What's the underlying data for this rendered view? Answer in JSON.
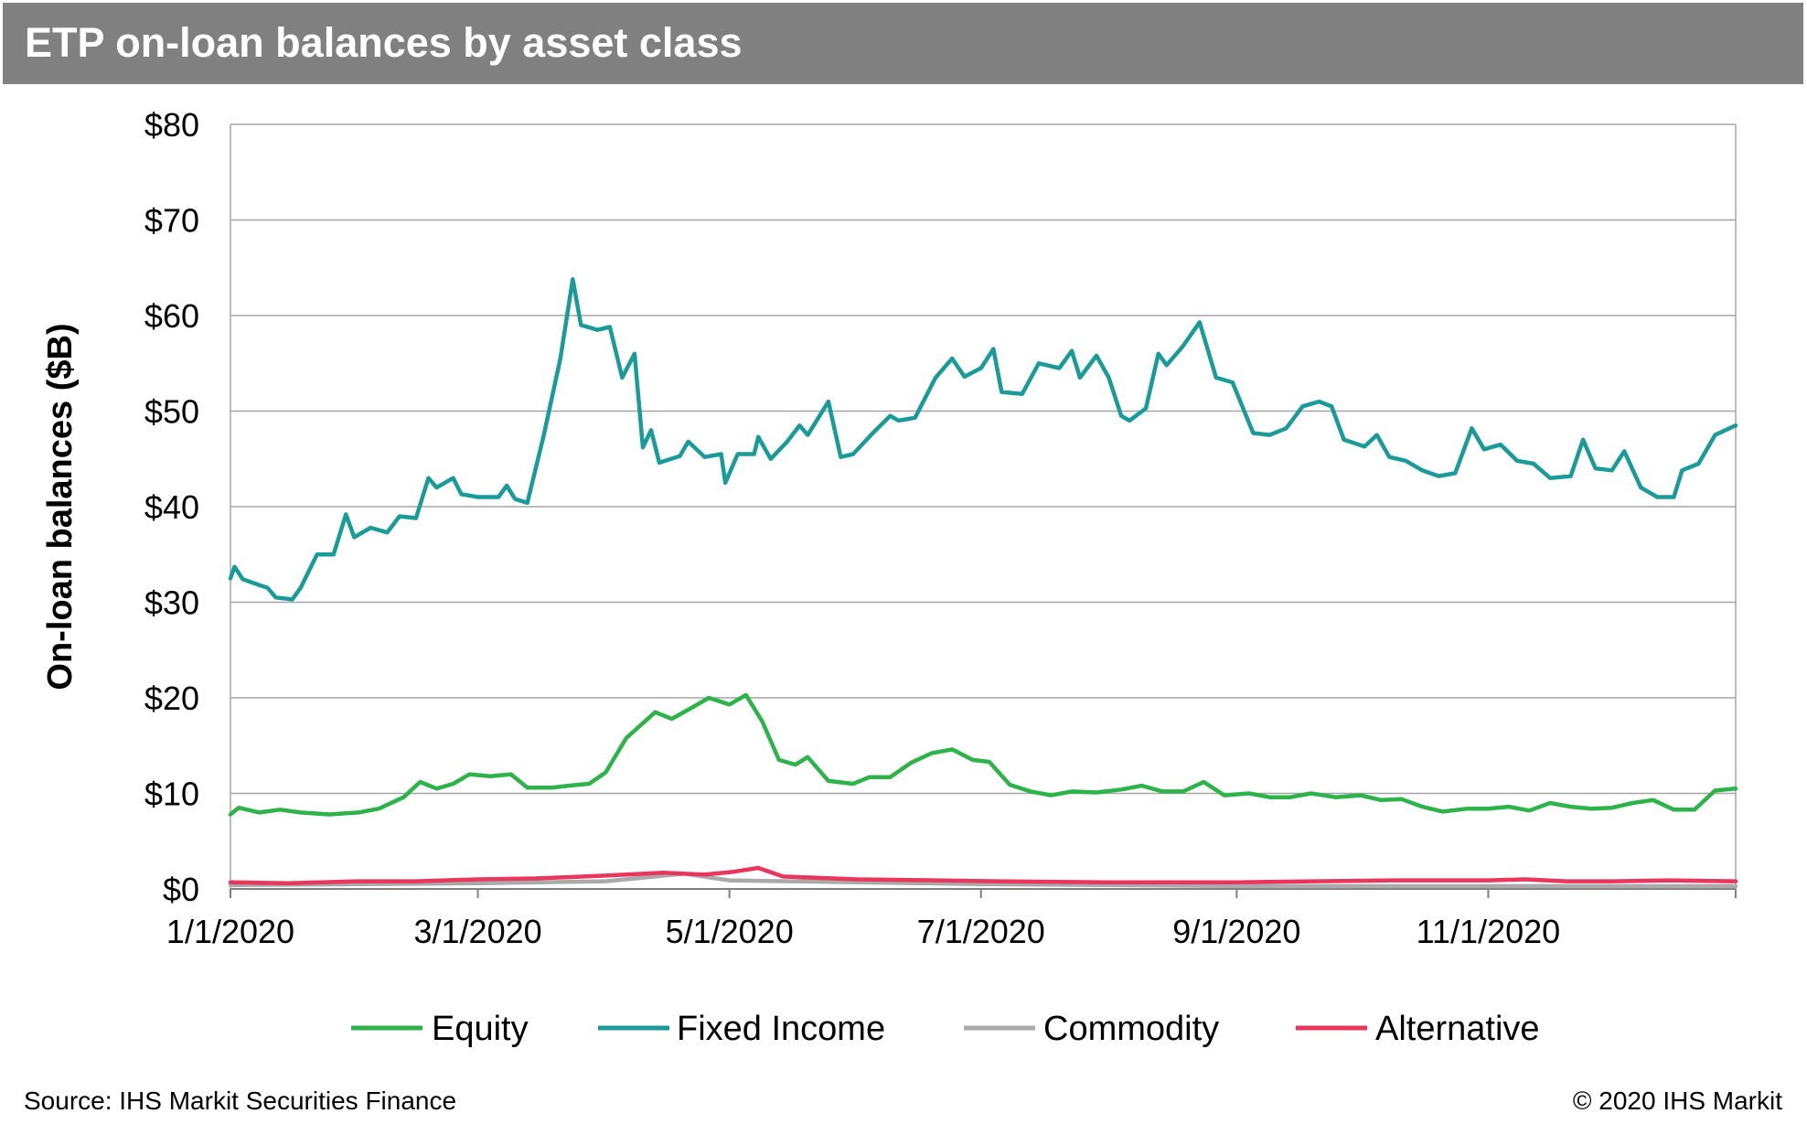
{
  "header": {
    "title": "ETP on-loan balances by asset class"
  },
  "footer": {
    "source": "Source: IHS Markit Securities Finance",
    "copyright": "© 2020 IHS Markit"
  },
  "chart_data": {
    "type": "line",
    "title": "ETP on-loan balances by asset class",
    "xlabel": "",
    "ylabel": "On-loan balances ($B)",
    "ylim": [
      0,
      80
    ],
    "yticks": [
      0,
      10,
      20,
      30,
      40,
      50,
      60,
      70,
      80
    ],
    "ytick_labels": [
      "$0",
      "$10",
      "$20",
      "$30",
      "$40",
      "$50",
      "$60",
      "$70",
      "$80"
    ],
    "xlim": [
      "2020-01-01",
      "2020-12-31"
    ],
    "xticks": [
      "2020-01-01",
      "2020-03-01",
      "2020-05-01",
      "2020-07-01",
      "2020-09-01",
      "2020-11-01"
    ],
    "xtick_labels": [
      "1/1/2020",
      "3/1/2020",
      "5/1/2020",
      "7/1/2020",
      "9/1/2020",
      "11/1/2020"
    ],
    "grid": "horizontal",
    "legend_position": "bottom",
    "series": [
      {
        "name": "Equity",
        "color": "#2eb34a",
        "points": [
          [
            "2020-01-01",
            7.8
          ],
          [
            "2020-01-03",
            8.5
          ],
          [
            "2020-01-08",
            8.0
          ],
          [
            "2020-01-13",
            8.3
          ],
          [
            "2020-01-18",
            8.0
          ],
          [
            "2020-01-25",
            7.8
          ],
          [
            "2020-02-01",
            8.0
          ],
          [
            "2020-02-06",
            8.4
          ],
          [
            "2020-02-12",
            9.6
          ],
          [
            "2020-02-16",
            11.2
          ],
          [
            "2020-02-20",
            10.5
          ],
          [
            "2020-02-24",
            11.0
          ],
          [
            "2020-02-28",
            12.0
          ],
          [
            "2020-03-04",
            11.8
          ],
          [
            "2020-03-09",
            12.0
          ],
          [
            "2020-03-13",
            10.6
          ],
          [
            "2020-03-19",
            10.6
          ],
          [
            "2020-03-23",
            10.8
          ],
          [
            "2020-03-28",
            11.0
          ],
          [
            "2020-04-01",
            12.2
          ],
          [
            "2020-04-06",
            15.8
          ],
          [
            "2020-04-13",
            18.5
          ],
          [
            "2020-04-17",
            17.8
          ],
          [
            "2020-04-22",
            19.0
          ],
          [
            "2020-04-26",
            20.0
          ],
          [
            "2020-05-01",
            19.3
          ],
          [
            "2020-05-05",
            20.3
          ],
          [
            "2020-05-09",
            17.5
          ],
          [
            "2020-05-13",
            13.5
          ],
          [
            "2020-05-17",
            13.0
          ],
          [
            "2020-05-20",
            13.8
          ],
          [
            "2020-05-25",
            11.3
          ],
          [
            "2020-05-31",
            11.0
          ],
          [
            "2020-06-04",
            11.7
          ],
          [
            "2020-06-09",
            11.7
          ],
          [
            "2020-06-14",
            13.2
          ],
          [
            "2020-06-19",
            14.2
          ],
          [
            "2020-06-24",
            14.6
          ],
          [
            "2020-06-29",
            13.5
          ],
          [
            "2020-07-03",
            13.3
          ],
          [
            "2020-07-08",
            10.9
          ],
          [
            "2020-07-13",
            10.2
          ],
          [
            "2020-07-18",
            9.8
          ],
          [
            "2020-07-23",
            10.2
          ],
          [
            "2020-07-29",
            10.1
          ],
          [
            "2020-08-04",
            10.4
          ],
          [
            "2020-08-09",
            10.8
          ],
          [
            "2020-08-14",
            10.2
          ],
          [
            "2020-08-19",
            10.2
          ],
          [
            "2020-08-24",
            11.2
          ],
          [
            "2020-08-29",
            9.8
          ],
          [
            "2020-09-04",
            10.0
          ],
          [
            "2020-09-09",
            9.6
          ],
          [
            "2020-09-14",
            9.6
          ],
          [
            "2020-09-19",
            10.0
          ],
          [
            "2020-09-25",
            9.6
          ],
          [
            "2020-10-01",
            9.8
          ],
          [
            "2020-10-06",
            9.3
          ],
          [
            "2020-10-11",
            9.4
          ],
          [
            "2020-10-16",
            8.6
          ],
          [
            "2020-10-21",
            8.1
          ],
          [
            "2020-10-27",
            8.4
          ],
          [
            "2020-11-01",
            8.4
          ],
          [
            "2020-11-06",
            8.6
          ],
          [
            "2020-11-11",
            8.2
          ],
          [
            "2020-11-16",
            9.0
          ],
          [
            "2020-11-21",
            8.6
          ],
          [
            "2020-11-26",
            8.4
          ],
          [
            "2020-12-01",
            8.5
          ],
          [
            "2020-12-06",
            9.0
          ],
          [
            "2020-12-11",
            9.3
          ],
          [
            "2020-12-16",
            8.3
          ],
          [
            "2020-12-21",
            8.3
          ],
          [
            "2020-12-26",
            10.3
          ],
          [
            "2020-12-31",
            10.5
          ]
        ]
      },
      {
        "name": "Fixed Income",
        "color": "#1b9a9a",
        "points": [
          [
            "2020-01-01",
            32.5
          ],
          [
            "2020-01-02",
            33.7
          ],
          [
            "2020-01-04",
            32.4
          ],
          [
            "2020-01-08",
            31.8
          ],
          [
            "2020-01-10",
            31.5
          ],
          [
            "2020-01-12",
            30.5
          ],
          [
            "2020-01-16",
            30.3
          ],
          [
            "2020-01-18",
            31.5
          ],
          [
            "2020-01-22",
            35.0
          ],
          [
            "2020-01-26",
            35.0
          ],
          [
            "2020-01-29",
            39.2
          ],
          [
            "2020-01-31",
            36.8
          ],
          [
            "2020-02-04",
            37.8
          ],
          [
            "2020-02-08",
            37.3
          ],
          [
            "2020-02-11",
            39.0
          ],
          [
            "2020-02-15",
            38.8
          ],
          [
            "2020-02-18",
            43.0
          ],
          [
            "2020-02-20",
            42.0
          ],
          [
            "2020-02-24",
            43.0
          ],
          [
            "2020-02-26",
            41.3
          ],
          [
            "2020-03-01",
            41.0
          ],
          [
            "2020-03-06",
            41.0
          ],
          [
            "2020-03-08",
            42.2
          ],
          [
            "2020-03-10",
            40.8
          ],
          [
            "2020-03-13",
            40.4
          ],
          [
            "2020-03-17",
            47.5
          ],
          [
            "2020-03-21",
            55.5
          ],
          [
            "2020-03-24",
            63.8
          ],
          [
            "2020-03-26",
            59.0
          ],
          [
            "2020-03-30",
            58.5
          ],
          [
            "2020-04-02",
            58.8
          ],
          [
            "2020-04-05",
            53.5
          ],
          [
            "2020-04-08",
            56.0
          ],
          [
            "2020-04-10",
            46.2
          ],
          [
            "2020-04-12",
            48.0
          ],
          [
            "2020-04-14",
            44.6
          ],
          [
            "2020-04-19",
            45.3
          ],
          [
            "2020-04-21",
            46.8
          ],
          [
            "2020-04-25",
            45.2
          ],
          [
            "2020-04-29",
            45.5
          ],
          [
            "2020-04-30",
            42.5
          ],
          [
            "2020-05-03",
            45.5
          ],
          [
            "2020-05-07",
            45.5
          ],
          [
            "2020-05-08",
            47.3
          ],
          [
            "2020-05-11",
            45.0
          ],
          [
            "2020-05-15",
            46.8
          ],
          [
            "2020-05-18",
            48.5
          ],
          [
            "2020-05-20",
            47.5
          ],
          [
            "2020-05-25",
            51.0
          ],
          [
            "2020-05-28",
            45.2
          ],
          [
            "2020-05-31",
            45.5
          ],
          [
            "2020-06-05",
            47.8
          ],
          [
            "2020-06-09",
            49.5
          ],
          [
            "2020-06-11",
            49.0
          ],
          [
            "2020-06-15",
            49.3
          ],
          [
            "2020-06-20",
            53.5
          ],
          [
            "2020-06-24",
            55.5
          ],
          [
            "2020-06-27",
            53.6
          ],
          [
            "2020-07-01",
            54.5
          ],
          [
            "2020-07-04",
            56.5
          ],
          [
            "2020-07-06",
            52.0
          ],
          [
            "2020-07-11",
            51.8
          ],
          [
            "2020-07-15",
            55.0
          ],
          [
            "2020-07-20",
            54.5
          ],
          [
            "2020-07-23",
            56.3
          ],
          [
            "2020-07-25",
            53.5
          ],
          [
            "2020-07-29",
            55.8
          ],
          [
            "2020-08-01",
            53.5
          ],
          [
            "2020-08-04",
            49.5
          ],
          [
            "2020-08-06",
            49.0
          ],
          [
            "2020-08-10",
            50.3
          ],
          [
            "2020-08-13",
            56.0
          ],
          [
            "2020-08-15",
            54.8
          ],
          [
            "2020-08-19",
            56.8
          ],
          [
            "2020-08-23",
            59.3
          ],
          [
            "2020-08-27",
            53.5
          ],
          [
            "2020-08-31",
            53.0
          ],
          [
            "2020-09-05",
            47.7
          ],
          [
            "2020-09-09",
            47.5
          ],
          [
            "2020-09-13",
            48.2
          ],
          [
            "2020-09-17",
            50.5
          ],
          [
            "2020-09-21",
            51.0
          ],
          [
            "2020-09-24",
            50.5
          ],
          [
            "2020-09-27",
            47.0
          ],
          [
            "2020-10-02",
            46.3
          ],
          [
            "2020-10-05",
            47.5
          ],
          [
            "2020-10-08",
            45.2
          ],
          [
            "2020-10-12",
            44.8
          ],
          [
            "2020-10-16",
            43.8
          ],
          [
            "2020-10-20",
            43.2
          ],
          [
            "2020-10-24",
            43.5
          ],
          [
            "2020-10-28",
            48.2
          ],
          [
            "2020-10-31",
            46.0
          ],
          [
            "2020-11-04",
            46.5
          ],
          [
            "2020-11-08",
            44.8
          ],
          [
            "2020-11-12",
            44.5
          ],
          [
            "2020-11-16",
            43.0
          ],
          [
            "2020-11-21",
            43.2
          ],
          [
            "2020-11-24",
            47.0
          ],
          [
            "2020-11-27",
            44.0
          ],
          [
            "2020-12-01",
            43.8
          ],
          [
            "2020-12-04",
            45.8
          ],
          [
            "2020-12-08",
            42.0
          ],
          [
            "2020-12-12",
            41.0
          ],
          [
            "2020-12-16",
            41.0
          ],
          [
            "2020-12-18",
            43.8
          ],
          [
            "2020-12-22",
            44.5
          ],
          [
            "2020-12-26",
            47.5
          ],
          [
            "2020-12-31",
            48.5
          ]
        ]
      },
      {
        "name": "Commodity",
        "color": "#aaaaaa",
        "points": [
          [
            "2020-01-01",
            0.4
          ],
          [
            "2020-02-01",
            0.5
          ],
          [
            "2020-03-01",
            0.6
          ],
          [
            "2020-04-01",
            0.8
          ],
          [
            "2020-04-20",
            1.6
          ],
          [
            "2020-05-01",
            0.9
          ],
          [
            "2020-06-01",
            0.7
          ],
          [
            "2020-07-01",
            0.5
          ],
          [
            "2020-08-01",
            0.4
          ],
          [
            "2020-09-01",
            0.3
          ],
          [
            "2020-10-01",
            0.3
          ],
          [
            "2020-11-01",
            0.3
          ],
          [
            "2020-12-01",
            0.3
          ],
          [
            "2020-12-31",
            0.3
          ]
        ]
      },
      {
        "name": "Alternative",
        "color": "#e8365d",
        "points": [
          [
            "2020-01-01",
            0.7
          ],
          [
            "2020-01-15",
            0.6
          ],
          [
            "2020-02-01",
            0.8
          ],
          [
            "2020-02-15",
            0.8
          ],
          [
            "2020-03-01",
            1.0
          ],
          [
            "2020-03-15",
            1.1
          ],
          [
            "2020-04-01",
            1.4
          ],
          [
            "2020-04-15",
            1.7
          ],
          [
            "2020-04-25",
            1.5
          ],
          [
            "2020-05-02",
            1.8
          ],
          [
            "2020-05-08",
            2.2
          ],
          [
            "2020-05-14",
            1.3
          ],
          [
            "2020-06-01",
            1.0
          ],
          [
            "2020-06-20",
            0.9
          ],
          [
            "2020-07-05",
            0.8
          ],
          [
            "2020-08-01",
            0.7
          ],
          [
            "2020-09-01",
            0.7
          ],
          [
            "2020-09-20",
            0.8
          ],
          [
            "2020-10-10",
            0.9
          ],
          [
            "2020-11-01",
            0.9
          ],
          [
            "2020-11-10",
            1.0
          ],
          [
            "2020-11-20",
            0.8
          ],
          [
            "2020-12-01",
            0.8
          ],
          [
            "2020-12-15",
            0.9
          ],
          [
            "2020-12-31",
            0.8
          ]
        ]
      }
    ]
  }
}
